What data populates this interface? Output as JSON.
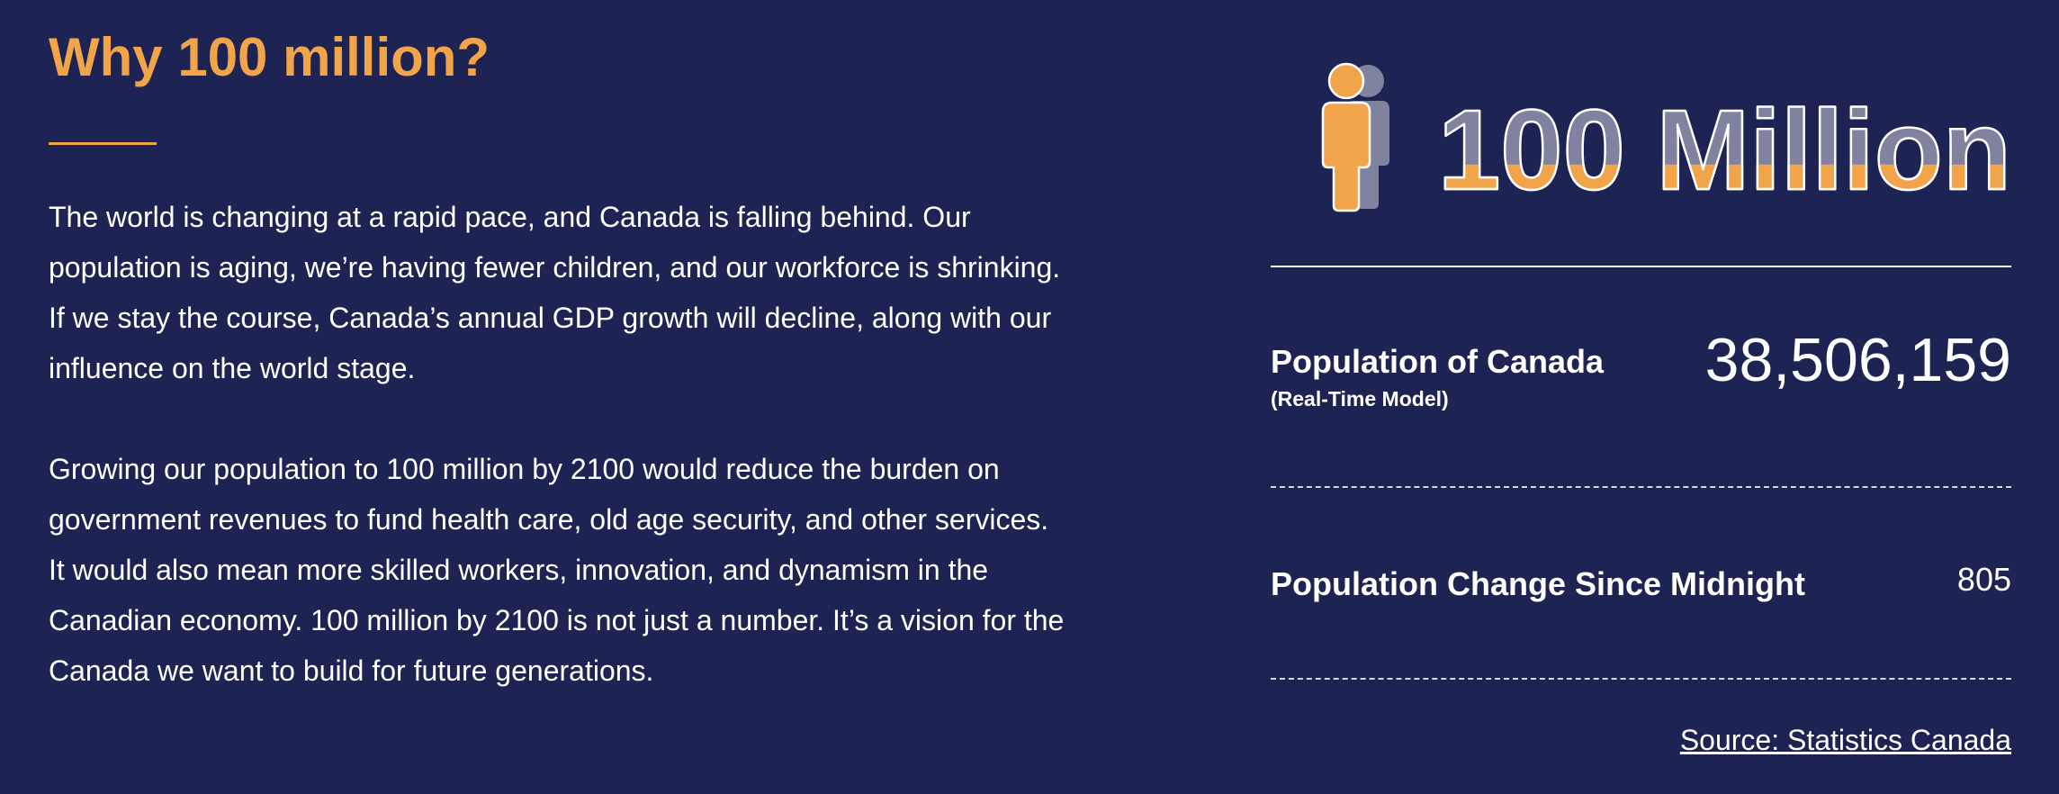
{
  "section": {
    "heading": "Why 100 million?",
    "paragraphs": [
      "The world is changing at a rapid pace, and Canada is falling behind. Our population is aging, we’re having fewer children, and our workforce is shrinking. If we stay the course, Canada’s annual GDP growth will decline, along with our influence on the world stage.",
      "Growing our population to 100 million by 2100 would reduce the burden on government revenues to fund health care, old age security, and other services. It would also mean more skilled workers, innovation, and dynamism in the Canadian economy. 100 million by 2100 is not just a number. It’s a vision for the Canada we want to build for future generations."
    ]
  },
  "hero": {
    "text": "100 Million",
    "icon": "person-icon",
    "fill_fraction": 0.3
  },
  "stats": {
    "population": {
      "label": "Population of Canada",
      "sublabel": "(Real-Time Model)",
      "value": "38,506,159"
    },
    "change": {
      "label": "Population Change Since Midnight",
      "value": "805"
    }
  },
  "source": {
    "link_text": "Source: Statistics Canada"
  },
  "colors": {
    "background": "#1d2352",
    "accent": "#f2a44a",
    "hero_grey": "#80839f",
    "text": "#ffffff"
  }
}
